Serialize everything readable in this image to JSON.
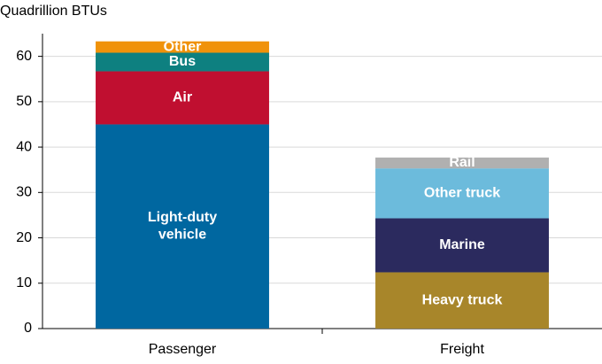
{
  "chart_data": {
    "type": "stacked_bar",
    "y_axis_label": "Quadrillion BTUs",
    "categories": [
      "Passenger",
      "Freight"
    ],
    "series": [
      {
        "name": "Light-duty vehicle",
        "color": "#0067a0",
        "values": [
          45.0,
          null
        ]
      },
      {
        "name": "Air",
        "color": "#c00f30",
        "values": [
          11.7,
          null
        ]
      },
      {
        "name": "Bus",
        "color": "#0e8080",
        "values": [
          4.1,
          null
        ]
      },
      {
        "name": "Other",
        "color": "#f0920a",
        "values": [
          2.5,
          null
        ]
      },
      {
        "name": "Heavy truck",
        "color": "#a8862a",
        "values": [
          null,
          12.4
        ]
      },
      {
        "name": "Marine",
        "color": "#2b2a5e",
        "values": [
          null,
          11.9
        ]
      },
      {
        "name": "Other truck",
        "color": "#6cbbdc",
        "values": [
          null,
          11.0
        ]
      },
      {
        "name": "Rail",
        "color": "#b0b0b0",
        "values": [
          null,
          2.4
        ]
      }
    ],
    "ylim": [
      0,
      65
    ],
    "yticks": [
      0,
      10,
      20,
      30,
      40,
      50,
      60
    ],
    "grid": true
  }
}
